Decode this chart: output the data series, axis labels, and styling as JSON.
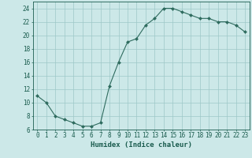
{
  "x": [
    0,
    1,
    2,
    3,
    4,
    5,
    6,
    7,
    8,
    9,
    10,
    11,
    12,
    13,
    14,
    15,
    16,
    17,
    18,
    19,
    20,
    21,
    22,
    23
  ],
  "y": [
    11,
    10,
    8,
    7.5,
    7,
    6.5,
    6.5,
    7,
    12.5,
    16,
    19,
    19.5,
    21.5,
    22.5,
    24,
    24,
    23.5,
    23,
    22.5,
    22.5,
    22,
    22,
    21.5,
    20.5
  ],
  "line_color": "#2e6b5e",
  "marker": "D",
  "marker_size": 2,
  "bg_color": "#cce8e8",
  "grid_color": "#9ec8c8",
  "xlabel": "Humidex (Indice chaleur)",
  "xlim": [
    -0.5,
    23.5
  ],
  "ylim": [
    6,
    25
  ],
  "yticks": [
    6,
    8,
    10,
    12,
    14,
    16,
    18,
    20,
    22,
    24
  ],
  "xticks": [
    0,
    1,
    2,
    3,
    4,
    5,
    6,
    7,
    8,
    9,
    10,
    11,
    12,
    13,
    14,
    15,
    16,
    17,
    18,
    19,
    20,
    21,
    22,
    23
  ],
  "tick_color": "#1a5c4e",
  "label_fontsize": 6.5,
  "tick_fontsize": 5.5
}
